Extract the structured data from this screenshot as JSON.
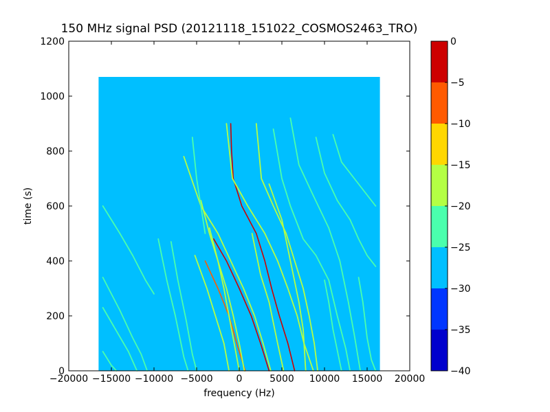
{
  "chart_data": {
    "type": "heatmap",
    "title": "150 MHz signal PSD (20121118_151022_COSMOS2463_TRO)",
    "xlabel": "frequency (Hz)",
    "ylabel": "time (s)",
    "xlim": [
      -20000,
      20000
    ],
    "ylim": [
      0,
      1200
    ],
    "xticks": [
      -20000,
      -15000,
      -10000,
      -5000,
      0,
      5000,
      10000,
      15000,
      20000
    ],
    "xtick_labels": [
      "−20000",
      "−15000",
      "−10000",
      "−5000",
      "0",
      "5000",
      "10000",
      "15000",
      "20000"
    ],
    "yticks": [
      0,
      200,
      400,
      600,
      800,
      1000,
      1200
    ],
    "ytick_labels": [
      "0",
      "200",
      "400",
      "600",
      "800",
      "1000",
      "1200"
    ],
    "data_extent": {
      "x": [
        -16500,
        16500
      ],
      "y": [
        0,
        1070
      ]
    },
    "background_level": -27.5,
    "colorbar": {
      "levels": [
        -40,
        -35,
        -30,
        -25,
        -20,
        -15,
        -10,
        -5,
        0
      ],
      "tick_labels": [
        "−40",
        "−35",
        "−30",
        "−25",
        "−20",
        "−15",
        "−10",
        "−5",
        "0"
      ],
      "colors": [
        "#0000cd",
        "#0036ff",
        "#00bfff",
        "#4affad",
        "#b4ff44",
        "#ffd700",
        "#ff5a00",
        "#cd0000"
      ]
    },
    "traces": [
      {
        "points": [
          [
            -1000,
            900
          ],
          [
            -900,
            800
          ],
          [
            -700,
            700
          ],
          [
            300,
            600
          ],
          [
            2000,
            500
          ],
          [
            3000,
            400
          ],
          [
            3800,
            300
          ],
          [
            4700,
            200
          ],
          [
            5700,
            100
          ],
          [
            6500,
            0
          ]
        ],
        "level": -2
      },
      {
        "points": [
          [
            -3000,
            480
          ],
          [
            -1500,
            400
          ],
          [
            0,
            300
          ],
          [
            1400,
            200
          ],
          [
            2500,
            100
          ],
          [
            3500,
            0
          ]
        ],
        "level": -4
      },
      {
        "points": [
          [
            -4000,
            400
          ],
          [
            -2500,
            300
          ],
          [
            -1200,
            200
          ],
          [
            -300,
            100
          ],
          [
            700,
            0
          ]
        ],
        "level": -6
      },
      {
        "points": [
          [
            -1500,
            900
          ],
          [
            -800,
            700
          ],
          [
            1000,
            600
          ],
          [
            3000,
            500
          ],
          [
            4500,
            400
          ],
          [
            5700,
            300
          ],
          [
            6800,
            200
          ],
          [
            7600,
            100
          ],
          [
            8700,
            0
          ]
        ],
        "level": -17
      },
      {
        "points": [
          [
            -6500,
            780
          ],
          [
            -4500,
            600
          ],
          [
            -2500,
            500
          ],
          [
            -1000,
            400
          ],
          [
            500,
            300
          ],
          [
            1800,
            200
          ],
          [
            2800,
            100
          ],
          [
            3700,
            0
          ]
        ],
        "level": -17
      },
      {
        "points": [
          [
            -4500,
            620
          ],
          [
            -3500,
            500
          ],
          [
            -2500,
            400
          ],
          [
            -1500,
            300
          ],
          [
            -700,
            200
          ],
          [
            0,
            100
          ],
          [
            600,
            0
          ]
        ],
        "level": -17
      },
      {
        "points": [
          [
            2000,
            900
          ],
          [
            2600,
            700
          ],
          [
            4000,
            600
          ],
          [
            5500,
            500
          ],
          [
            6500,
            400
          ],
          [
            7500,
            300
          ],
          [
            8200,
            200
          ],
          [
            8800,
            100
          ],
          [
            9200,
            0
          ]
        ],
        "level": -17
      },
      {
        "points": [
          [
            3500,
            680
          ],
          [
            5000,
            550
          ],
          [
            6000,
            400
          ],
          [
            7000,
            250
          ],
          [
            7500,
            150
          ],
          [
            7800,
            0
          ]
        ],
        "level": -17
      },
      {
        "points": [
          [
            -3500,
            520
          ],
          [
            -2500,
            400
          ],
          [
            -1800,
            300
          ],
          [
            -1200,
            200
          ],
          [
            -600,
            100
          ],
          [
            0,
            0
          ]
        ],
        "level": -17
      },
      {
        "points": [
          [
            -5200,
            420
          ],
          [
            -3800,
            300
          ],
          [
            -2800,
            200
          ],
          [
            -1800,
            100
          ],
          [
            -1200,
            0
          ]
        ],
        "level": -17
      },
      {
        "points": [
          [
            1500,
            500
          ],
          [
            2500,
            350
          ],
          [
            3500,
            250
          ],
          [
            4500,
            100
          ],
          [
            5200,
            0
          ]
        ],
        "level": -17
      },
      {
        "points": [
          [
            -16000,
            600
          ],
          [
            -14000,
            500
          ],
          [
            -12500,
            420
          ],
          [
            -11000,
            330
          ],
          [
            -10000,
            280
          ]
        ],
        "level": -22
      },
      {
        "points": [
          [
            -16000,
            340
          ],
          [
            -14000,
            220
          ],
          [
            -12500,
            120
          ],
          [
            -11500,
            60
          ],
          [
            -10800,
            0
          ]
        ],
        "level": -22
      },
      {
        "points": [
          [
            -16000,
            230
          ],
          [
            -14500,
            150
          ],
          [
            -13000,
            70
          ],
          [
            -12000,
            0
          ]
        ],
        "level": -22
      },
      {
        "points": [
          [
            -16000,
            70
          ],
          [
            -15000,
            20
          ],
          [
            -14400,
            0
          ]
        ],
        "level": -22
      },
      {
        "points": [
          [
            -9500,
            480
          ],
          [
            -8500,
            330
          ],
          [
            -7500,
            200
          ],
          [
            -6500,
            50
          ],
          [
            -6000,
            0
          ]
        ],
        "level": -22
      },
      {
        "points": [
          [
            -8000,
            470
          ],
          [
            -7200,
            330
          ],
          [
            -6200,
            180
          ],
          [
            -5500,
            60
          ],
          [
            -5000,
            0
          ]
        ],
        "level": -22
      },
      {
        "points": [
          [
            -5500,
            850
          ],
          [
            -5000,
            700
          ],
          [
            -4500,
            600
          ],
          [
            -4000,
            500
          ]
        ],
        "level": -22
      },
      {
        "points": [
          [
            4000,
            880
          ],
          [
            5000,
            700
          ],
          [
            6000,
            600
          ],
          [
            7500,
            480
          ],
          [
            9000,
            420
          ],
          [
            10500,
            330
          ],
          [
            11500,
            200
          ],
          [
            12500,
            80
          ],
          [
            13000,
            0
          ]
        ],
        "level": -22
      },
      {
        "points": [
          [
            6000,
            920
          ],
          [
            7000,
            750
          ],
          [
            8500,
            650
          ],
          [
            10500,
            520
          ],
          [
            11800,
            400
          ],
          [
            12800,
            250
          ],
          [
            13500,
            130
          ],
          [
            14200,
            0
          ]
        ],
        "level": -22
      },
      {
        "points": [
          [
            9000,
            850
          ],
          [
            10000,
            720
          ],
          [
            11500,
            620
          ],
          [
            13000,
            550
          ],
          [
            14000,
            480
          ],
          [
            15000,
            420
          ],
          [
            16000,
            380
          ]
        ],
        "level": -22
      },
      {
        "points": [
          [
            11000,
            860
          ],
          [
            12000,
            760
          ],
          [
            13500,
            700
          ],
          [
            15000,
            640
          ],
          [
            16000,
            600
          ]
        ],
        "level": -22
      },
      {
        "points": [
          [
            14000,
            340
          ],
          [
            14500,
            250
          ],
          [
            15000,
            120
          ],
          [
            15500,
            40
          ],
          [
            16000,
            0
          ]
        ],
        "level": -22
      },
      {
        "points": [
          [
            10000,
            330
          ],
          [
            10500,
            250
          ],
          [
            11000,
            150
          ],
          [
            11600,
            60
          ],
          [
            12000,
            0
          ]
        ],
        "level": -22
      }
    ]
  }
}
